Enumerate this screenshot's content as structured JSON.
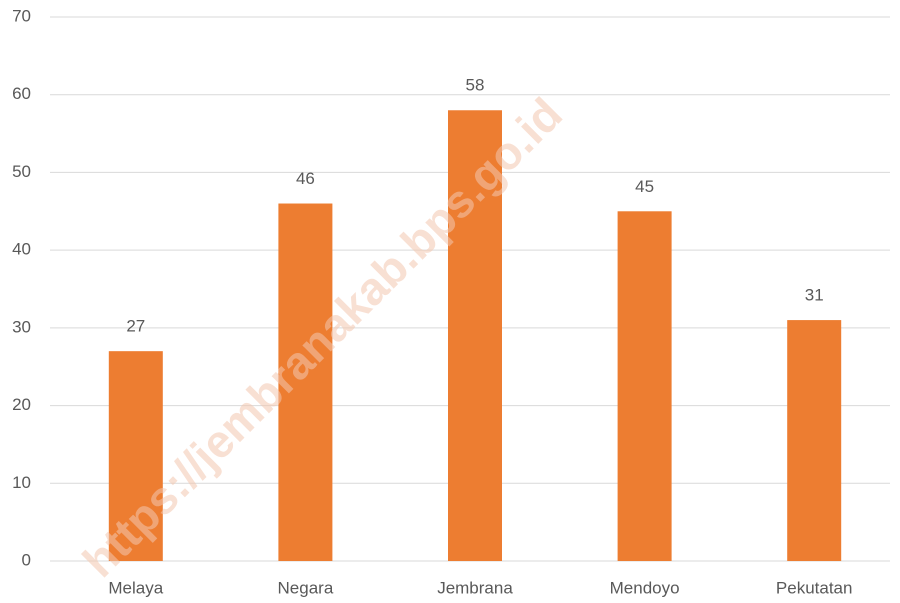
{
  "chart_data": {
    "type": "bar",
    "categories": [
      "Melaya",
      "Negara",
      "Jembrana",
      "Mendoyo",
      "Pekutatan"
    ],
    "values": [
      27,
      46,
      58,
      45,
      31
    ],
    "color": "#ed7d31",
    "ylim": [
      0,
      70
    ],
    "yticks": [
      0,
      10,
      20,
      30,
      40,
      50,
      60,
      70
    ],
    "grid": true,
    "watermark": "https://jembranakab.bps.go.id"
  }
}
